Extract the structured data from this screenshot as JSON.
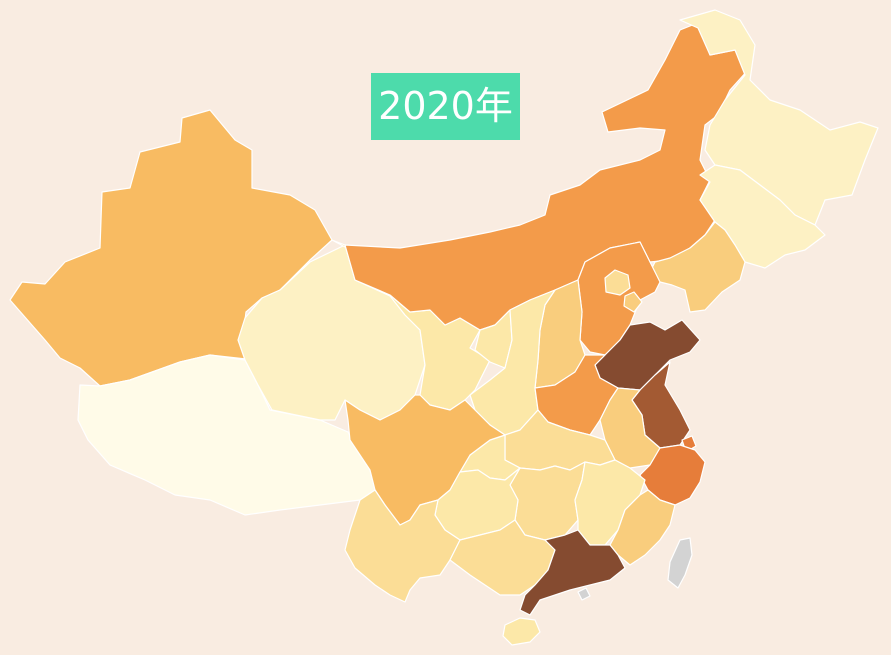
{
  "title": "2020年",
  "map": {
    "colors": {
      "background": "#f9ece1",
      "level_1": "#fffbe8",
      "level_2": "#fdf1c4",
      "level_3": "#fce8a8",
      "level_4": "#fbdd96",
      "level_5": "#f9cd7d",
      "level_6": "#f8bb62",
      "level_7": "#f39b4a",
      "level_8": "#e67d3a",
      "level_9": "#a35a33",
      "level_10": "#854b30",
      "no_data": "#d3d3d3",
      "title_badge": "#4ddbab"
    },
    "regions": [
      {
        "name": "xinjiang",
        "level": "level_6"
      },
      {
        "name": "tibet",
        "level": "level_1"
      },
      {
        "name": "qinghai",
        "level": "level_2"
      },
      {
        "name": "gansu",
        "level": "level_3"
      },
      {
        "name": "inner-mongolia",
        "level": "level_7"
      },
      {
        "name": "heilongjiang",
        "level": "level_2"
      },
      {
        "name": "jilin",
        "level": "level_2"
      },
      {
        "name": "liaoning",
        "level": "level_5"
      },
      {
        "name": "hebei",
        "level": "level_7"
      },
      {
        "name": "beijing",
        "level": "level_4"
      },
      {
        "name": "tianjin",
        "level": "level_5"
      },
      {
        "name": "shanxi",
        "level": "level_5"
      },
      {
        "name": "ningxia",
        "level": "level_3"
      },
      {
        "name": "shaanxi",
        "level": "level_3"
      },
      {
        "name": "shandong",
        "level": "level_10"
      },
      {
        "name": "henan",
        "level": "level_7"
      },
      {
        "name": "jiangsu",
        "level": "level_9"
      },
      {
        "name": "anhui",
        "level": "level_5"
      },
      {
        "name": "shanghai",
        "level": "level_8"
      },
      {
        "name": "zhejiang",
        "level": "level_8"
      },
      {
        "name": "hubei",
        "level": "level_4"
      },
      {
        "name": "sichuan",
        "level": "level_6"
      },
      {
        "name": "chongqing",
        "level": "level_3"
      },
      {
        "name": "hunan",
        "level": "level_4"
      },
      {
        "name": "jiangxi",
        "level": "level_3"
      },
      {
        "name": "fujian",
        "level": "level_5"
      },
      {
        "name": "guizhou",
        "level": "level_3"
      },
      {
        "name": "yunnan",
        "level": "level_4"
      },
      {
        "name": "guangxi",
        "level": "level_4"
      },
      {
        "name": "guangdong",
        "level": "level_10"
      },
      {
        "name": "hainan",
        "level": "level_3"
      },
      {
        "name": "taiwan",
        "level": "no_data"
      },
      {
        "name": "hong-kong",
        "level": "no_data"
      }
    ]
  }
}
